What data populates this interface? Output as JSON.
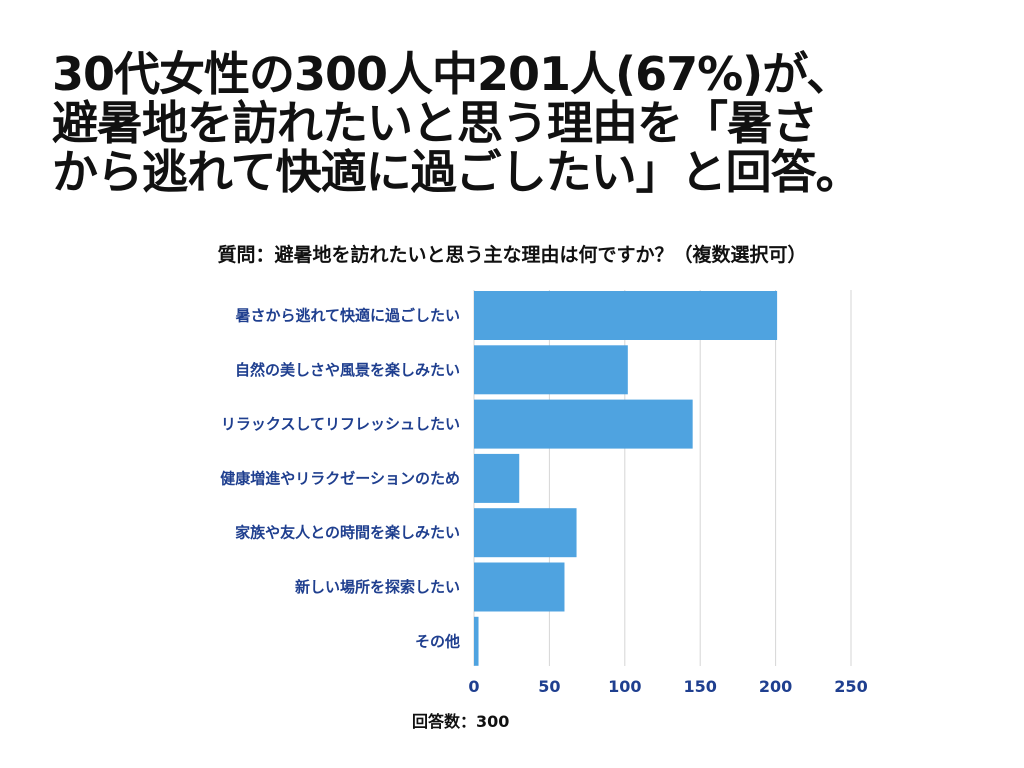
{
  "headline": {
    "line1": "30代女性の300人中201人(67%)が、",
    "line2": "避暑地を訪れたいと思う理由を「暑さ",
    "line3": "から逃れて快適に過ごしたい」と回答。"
  },
  "footer": {
    "respondents": "回答数：300"
  },
  "colors": {
    "bar": "#4fa3e0",
    "grid": "#d6d6d6",
    "label": "#1f3f8f"
  },
  "chart_data": {
    "type": "bar",
    "orientation": "horizontal",
    "title": "質問：避暑地を訪れたいと思う主な理由は何ですか？（複数選択可）",
    "categories": [
      "暑さから逃れて快適に過ごしたい",
      "自然の美しさや風景を楽しみたい",
      "リラックスしてリフレッシュしたい",
      "健康増進やリラクゼーションのため",
      "家族や友人との時間を楽しみたい",
      "新しい場所を探索したい",
      "その他"
    ],
    "values": [
      201,
      102,
      145,
      30,
      68,
      60,
      3
    ],
    "xlim": [
      0,
      250
    ],
    "xticks": [
      "0",
      "50",
      "100",
      "150",
      "200",
      "250"
    ],
    "xlabel": "",
    "ylabel": "",
    "grid": true,
    "legend": "none"
  }
}
